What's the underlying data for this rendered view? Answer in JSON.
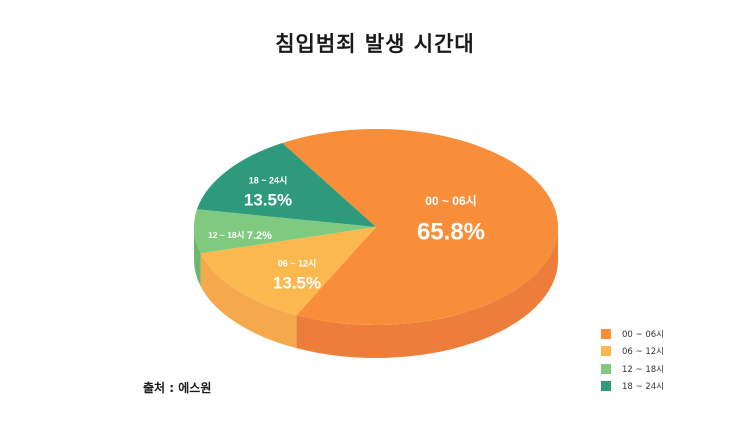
{
  "chart_data": {
    "type": "pie",
    "title": "침입범죄 발생 시간대",
    "slices": [
      {
        "label": "00 ~ 06시",
        "value": 65.8,
        "value_label": "65.8%",
        "color": "#f98e3a",
        "side_color": "#ed7d3b"
      },
      {
        "label": "06 ~ 12시",
        "value": 13.5,
        "value_label": "13.5%",
        "color": "#fbb84f",
        "side_color": "#f5a84c"
      },
      {
        "label": "12 ~ 18시",
        "value": 7.2,
        "value_label": "7.2%",
        "color": "#7fca7f",
        "side_color": "#6bb86b"
      },
      {
        "label": "18 ~ 24시",
        "value": 13.5,
        "value_label": "13.5%",
        "color": "#2e9a7b",
        "side_color": "#1f7f63"
      }
    ],
    "legend_position": "bottom-right"
  },
  "source_note": "출처 : 에스원"
}
